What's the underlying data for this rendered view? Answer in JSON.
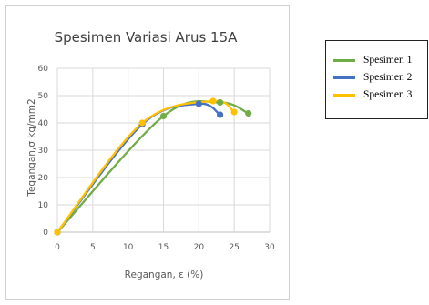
{
  "chart_data": {
    "type": "line",
    "title": "Spesimen Variasi Arus 15A",
    "xlabel": "Regangan, ε (%)",
    "ylabel": "Tegangan,σ kg/mm2",
    "xlim": [
      0,
      30
    ],
    "ylim": [
      0,
      60
    ],
    "x_ticks": [
      "0",
      "5",
      "10",
      "15",
      "20",
      "25",
      "30"
    ],
    "y_ticks": [
      "0",
      "10",
      "20",
      "30",
      "40",
      "50",
      "60"
    ],
    "grid": true,
    "smooth": true,
    "legend_position": "right, outside plot",
    "series": [
      {
        "name": "Spesimen 1",
        "color": "#70ad47",
        "points": [
          [
            0,
            0
          ],
          [
            15,
            42.5
          ],
          [
            23,
            47.5
          ],
          [
            27,
            43.5
          ]
        ]
      },
      {
        "name": "Spesimen 2",
        "color": "#4472c4",
        "points": [
          [
            0,
            0
          ],
          [
            12,
            39.5
          ],
          [
            20,
            47
          ],
          [
            23,
            43
          ]
        ]
      },
      {
        "name": "Spesimen 3",
        "color": "#ffc000",
        "points": [
          [
            0,
            0
          ],
          [
            12,
            40
          ],
          [
            22,
            48
          ],
          [
            25,
            44
          ]
        ]
      }
    ]
  }
}
